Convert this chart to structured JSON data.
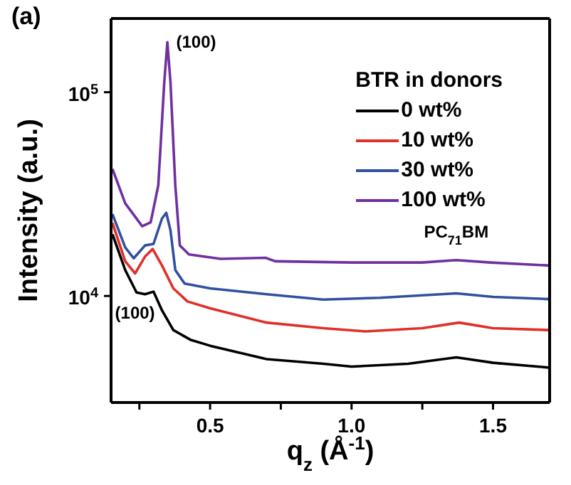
{
  "chart_data": {
    "type": "line",
    "title": "(a)",
    "xlabel": "q$_{z}$ (Å$^{-1}$)",
    "ylabel": "Intensity (a.u.)",
    "legend_title": "BTR in donors",
    "legend": "top right",
    "log": "y",
    "grid": false,
    "marker": "none",
    "line_style": "solid",
    "xlim": [
      0.15,
      1.7
    ],
    "xticks": [
      {
        "value": 0.25,
        "label": null
      },
      {
        "value": 0.5,
        "label": "0.5"
      },
      {
        "value": 0.75,
        "label": null
      },
      {
        "value": 1.0,
        "label": "1.0"
      },
      {
        "value": 1.25,
        "label": null
      },
      {
        "value": 1.5,
        "label": "1.5"
      }
    ],
    "ylim": [
      3000,
      230000
    ],
    "yticks": [
      {
        "value": 10000,
        "label": "10$^{4}$"
      },
      {
        "value": 100000,
        "label": "10$^{5}$"
      }
    ],
    "annotations": [
      {
        "text": "(100)",
        "x": 0.35,
        "y": 176000
      },
      {
        "text": "(100)",
        "x": 0.3,
        "y": 10500
      },
      {
        "text": "PC$_{71}$BM",
        "x": 1.37,
        "y": 15000
      }
    ],
    "series": [
      {
        "name": "0 wt%",
        "color": "#000000",
        "x": [
          0.155,
          0.2,
          0.24,
          0.27,
          0.3,
          0.33,
          0.37,
          0.43,
          0.5,
          0.7,
          0.9,
          1.0,
          1.2,
          1.37,
          1.5,
          1.7
        ],
        "values": [
          20100,
          13400,
          10400,
          10200,
          10500,
          8500,
          6800,
          6100,
          5700,
          4900,
          4650,
          4500,
          4650,
          5000,
          4700,
          4450
        ]
      },
      {
        "name": "10 wt%",
        "color": "#e0302a",
        "x": [
          0.155,
          0.2,
          0.235,
          0.27,
          0.297,
          0.33,
          0.37,
          0.42,
          0.5,
          0.7,
          0.9,
          1.05,
          1.25,
          1.38,
          1.5,
          1.7
        ],
        "values": [
          22800,
          14800,
          12900,
          15600,
          17000,
          14100,
          10900,
          9400,
          8700,
          7400,
          6950,
          6700,
          6950,
          7400,
          6950,
          6800
        ]
      },
      {
        "name": "30 wt%",
        "color": "#3050a0",
        "x": [
          0.155,
          0.2,
          0.23,
          0.27,
          0.3,
          0.33,
          0.345,
          0.36,
          0.377,
          0.41,
          0.5,
          0.7,
          0.9,
          1.1,
          1.37,
          1.5,
          1.7
        ],
        "values": [
          25200,
          17300,
          15300,
          17700,
          18000,
          24000,
          25600,
          21000,
          13400,
          11500,
          10900,
          10200,
          9600,
          9800,
          10300,
          9900,
          9650
        ]
      },
      {
        "name": "100 wt%",
        "color": "#7030a0",
        "x": [
          0.155,
          0.2,
          0.26,
          0.29,
          0.317,
          0.338,
          0.349,
          0.36,
          0.377,
          0.393,
          0.425,
          0.537,
          0.696,
          0.73,
          1.0,
          1.25,
          1.37,
          1.49,
          1.7
        ],
        "values": [
          42000,
          28500,
          22000,
          23000,
          35000,
          112000,
          176000,
          112000,
          35000,
          17700,
          16000,
          15200,
          15400,
          14800,
          14600,
          14600,
          15000,
          14600,
          14100
        ]
      }
    ]
  }
}
